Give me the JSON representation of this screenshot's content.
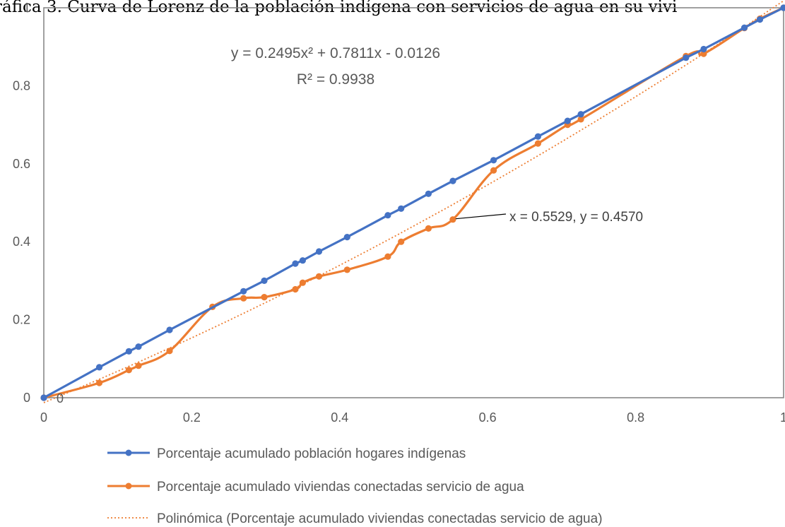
{
  "chart_data": {
    "type": "line",
    "title": "ráfica 3. Curva de Lorenz de la población indígena con servicios de agua en su vivi",
    "xlim": [
      0,
      1
    ],
    "ylim": [
      0,
      1
    ],
    "x_ticks": [
      "0",
      "0.2",
      "0.4",
      "0.6",
      "0.8",
      "1"
    ],
    "y_ticks": [
      "0",
      "0.2",
      "0.4",
      "0.6",
      "0.8",
      "1"
    ],
    "grid": false,
    "legend_position": "bottom",
    "series": [
      {
        "name": "Porcentaje acumulado población hogares indígenas",
        "color": "#4472c4",
        "points": [
          [
            0,
            0
          ],
          [
            0.075,
            0.078
          ],
          [
            0.115,
            0.119
          ],
          [
            0.128,
            0.131
          ],
          [
            0.17,
            0.174
          ],
          [
            0.27,
            0.273
          ],
          [
            0.298,
            0.3
          ],
          [
            0.34,
            0.344
          ],
          [
            0.35,
            0.352
          ],
          [
            0.372,
            0.375
          ],
          [
            0.41,
            0.412
          ],
          [
            0.465,
            0.468
          ],
          [
            0.483,
            0.485
          ],
          [
            0.52,
            0.523
          ],
          [
            0.553,
            0.556
          ],
          [
            0.608,
            0.609
          ],
          [
            0.668,
            0.67
          ],
          [
            0.708,
            0.71
          ],
          [
            0.726,
            0.727
          ],
          [
            0.868,
            0.872
          ],
          [
            0.892,
            0.894
          ],
          [
            0.947,
            0.949
          ],
          [
            0.968,
            0.97
          ],
          [
            1,
            1
          ]
        ]
      },
      {
        "name": "Porcentaje acumulado viviendas conectadas servicio de agua",
        "color": "#ed7d31",
        "points": [
          [
            0,
            0
          ],
          [
            0.075,
            0.038
          ],
          [
            0.115,
            0.071
          ],
          [
            0.128,
            0.082
          ],
          [
            0.17,
            0.12
          ],
          [
            0.228,
            0.233
          ],
          [
            0.27,
            0.255
          ],
          [
            0.298,
            0.258
          ],
          [
            0.34,
            0.278
          ],
          [
            0.35,
            0.295
          ],
          [
            0.372,
            0.311
          ],
          [
            0.41,
            0.328
          ],
          [
            0.465,
            0.362
          ],
          [
            0.483,
            0.4
          ],
          [
            0.52,
            0.434
          ],
          [
            0.5529,
            0.457
          ],
          [
            0.608,
            0.583
          ],
          [
            0.668,
            0.652
          ],
          [
            0.708,
            0.7
          ],
          [
            0.726,
            0.714
          ],
          [
            0.868,
            0.876
          ],
          [
            0.892,
            0.882
          ],
          [
            0.947,
            0.948
          ],
          [
            0.968,
            0.972
          ],
          [
            1,
            1
          ]
        ]
      }
    ],
    "trendline": {
      "name": "Polinómica (Porcentaje acumulado viviendas conectadas servicio de agua)",
      "color": "#ed7d31",
      "coefficients": [
        0.2495,
        0.7811,
        -0.0126
      ],
      "equation": "y = 0.2495x² + 0.7811x - 0.0126",
      "r_squared": "R² = 0.9938"
    },
    "annotations": {
      "point_label": "x = 0.5529, y = 0.4570",
      "point": [
        0.5529,
        0.457
      ],
      "origin_label": "0"
    }
  }
}
